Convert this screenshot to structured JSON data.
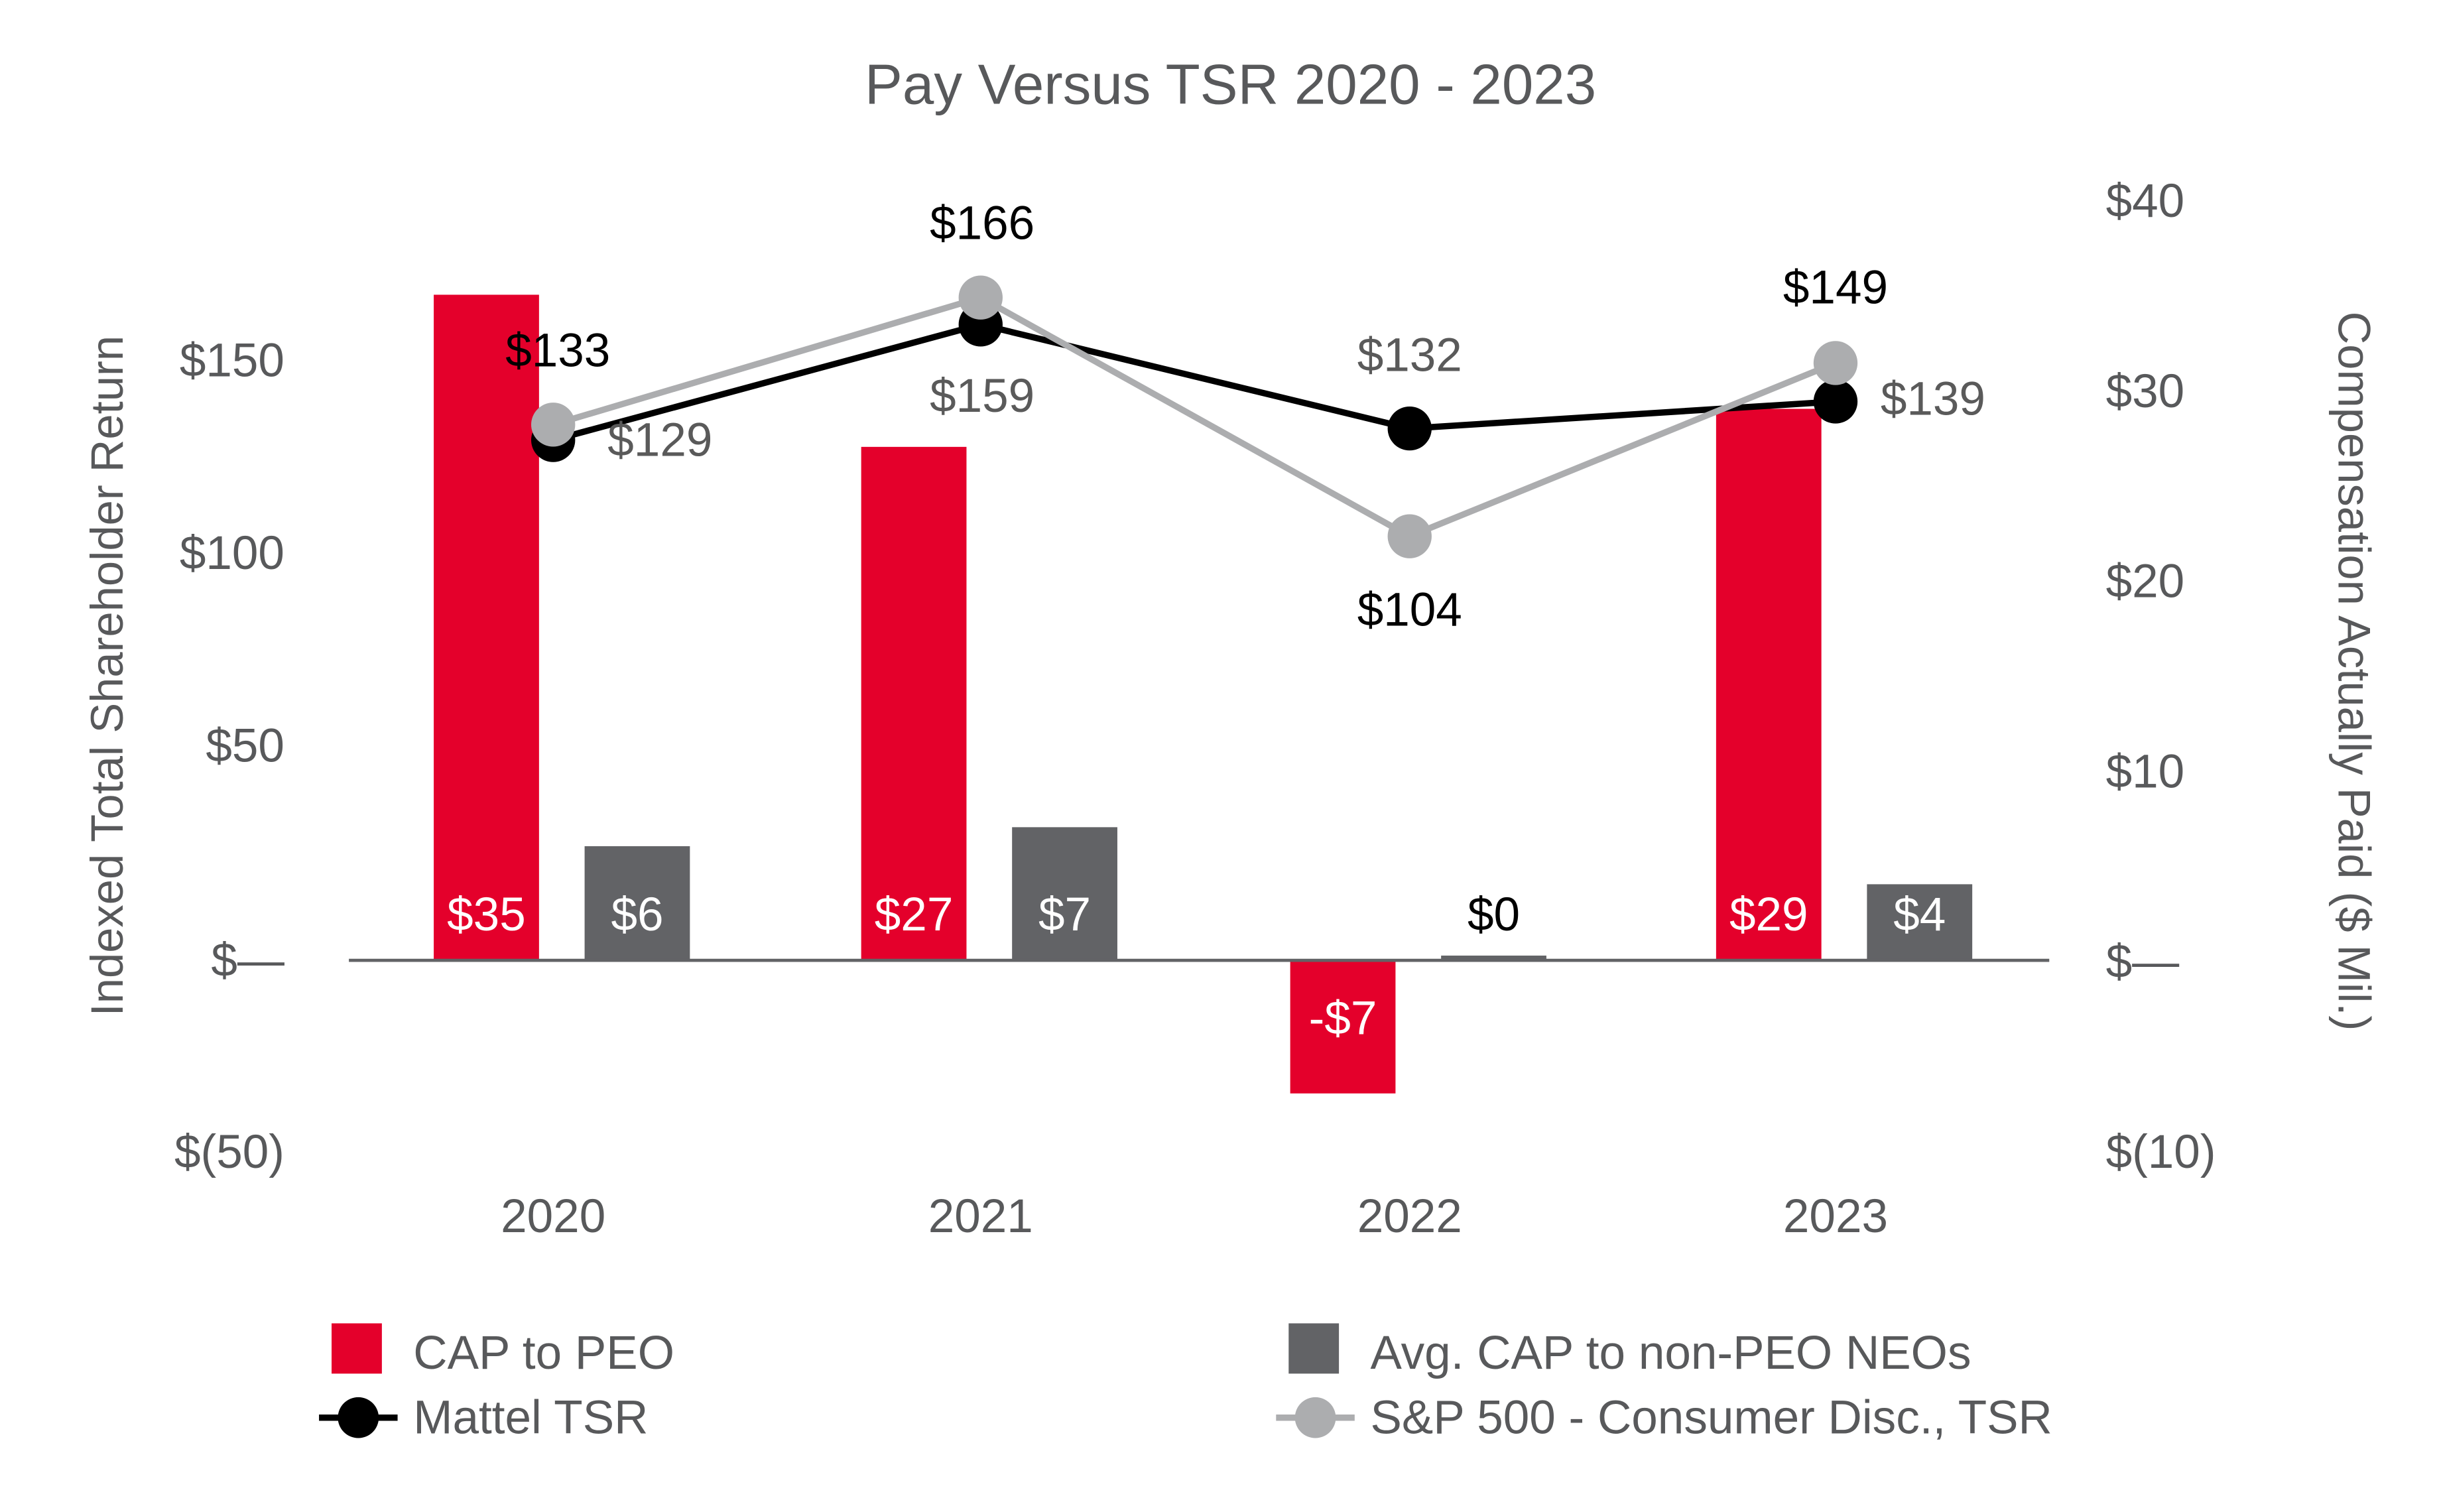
{
  "chart_data": {
    "type": "bar+line",
    "title": "Pay Versus TSR 2020 - 2023",
    "categories": [
      "2020",
      "2021",
      "2022",
      "2023"
    ],
    "left_axis": {
      "label": "Indexed Total Shareholder Return",
      "ticks": [
        "$150",
        "$100",
        "$50",
        "$—",
        "$(50)"
      ],
      "tick_values": [
        150,
        100,
        50,
        0,
        -50
      ]
    },
    "right_axis": {
      "label": "Compensation Actually Paid ($ Mil.)",
      "ticks": [
        "$40",
        "$30",
        "$20",
        "$10",
        "$—",
        "$(10)"
      ],
      "tick_values": [
        40,
        30,
        20,
        10,
        0,
        -10
      ],
      "ylim": [
        -10,
        40
      ]
    },
    "bar_series": [
      {
        "name": "CAP to PEO",
        "color": "#e4002b",
        "values": [
          35,
          27,
          -7,
          29
        ],
        "labels": [
          "$35",
          "$27",
          "-$7",
          "$29"
        ]
      },
      {
        "name": "Avg. CAP to non-PEO NEOs",
        "color": "#626366",
        "values": [
          6,
          7,
          0,
          4
        ],
        "labels": [
          "$6",
          "$7",
          "$0",
          "$4"
        ]
      }
    ],
    "line_series": [
      {
        "name": "Mattel TSR",
        "color": "#000000",
        "label_color": "#5a5a5a",
        "values": [
          129,
          159,
          132,
          139
        ],
        "labels": [
          "$129",
          "$159",
          "$132",
          "$139"
        ]
      },
      {
        "name": "S&P 500 - Consumer Disc., TSR",
        "color": "#acadaf",
        "label_color": "#000000",
        "values": [
          133,
          166,
          104,
          149
        ],
        "labels": [
          "$133",
          "$166",
          "$104",
          "$149"
        ]
      }
    ],
    "grid": false,
    "legend_position": "bottom"
  }
}
